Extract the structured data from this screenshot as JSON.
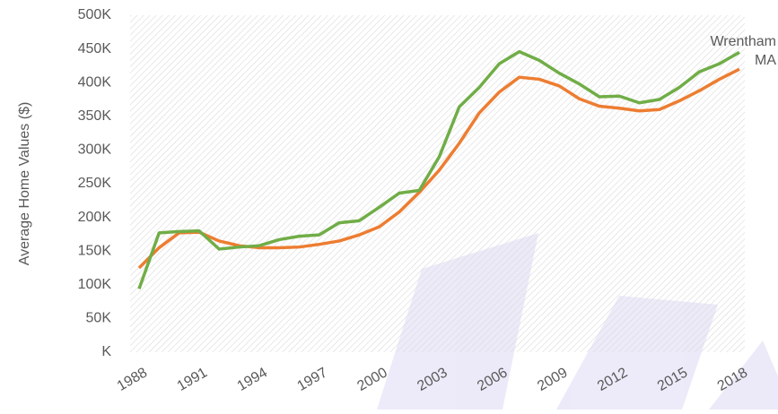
{
  "chart_data": {
    "type": "line",
    "y_label": "Average Home Values ($)",
    "x": [
      1988,
      1989,
      1990,
      1991,
      1992,
      1993,
      1994,
      1995,
      1996,
      1997,
      1998,
      1999,
      2000,
      2001,
      2002,
      2003,
      2004,
      2005,
      2006,
      2007,
      2008,
      2009,
      2010,
      2011,
      2012,
      2013,
      2014,
      2015,
      2016,
      2017,
      2018
    ],
    "series": [
      {
        "name": "Wrentham",
        "color": "#70ad47",
        "values": [
          94000,
          177000,
          179000,
          180000,
          153000,
          156000,
          158000,
          167000,
          172000,
          174000,
          192000,
          195000,
          215000,
          236000,
          240000,
          290000,
          364000,
          393000,
          428000,
          446000,
          433000,
          414000,
          398000,
          379000,
          380000,
          370000,
          375000,
          393000,
          416000,
          428000,
          445000
        ]
      },
      {
        "name": "MA",
        "color": "#ed7d31",
        "values": [
          125000,
          155000,
          177000,
          178000,
          165000,
          158000,
          155000,
          155000,
          156000,
          160000,
          165000,
          174000,
          186000,
          208000,
          237000,
          270000,
          310000,
          355000,
          386000,
          408000,
          405000,
          395000,
          376000,
          365000,
          362000,
          358000,
          360000,
          373000,
          388000,
          405000,
          420000
        ]
      }
    ],
    "xlim": [
      1988,
      2018
    ],
    "xticks": [
      1988,
      1991,
      1994,
      1997,
      2000,
      2003,
      2006,
      2009,
      2012,
      2015,
      2018
    ],
    "ylim": [
      0,
      500000
    ],
    "yticks": [
      {
        "value": 0,
        "label": "K"
      },
      {
        "value": 50000,
        "label": "50K"
      },
      {
        "value": 100000,
        "label": "100K"
      },
      {
        "value": 150000,
        "label": "150K"
      },
      {
        "value": 200000,
        "label": "200K"
      },
      {
        "value": 250000,
        "label": "250K"
      },
      {
        "value": 300000,
        "label": "300K"
      },
      {
        "value": 350000,
        "label": "350K"
      },
      {
        "value": 400000,
        "label": "400K"
      },
      {
        "value": 450000,
        "label": "450K"
      },
      {
        "value": 500000,
        "label": "500K"
      }
    ]
  }
}
